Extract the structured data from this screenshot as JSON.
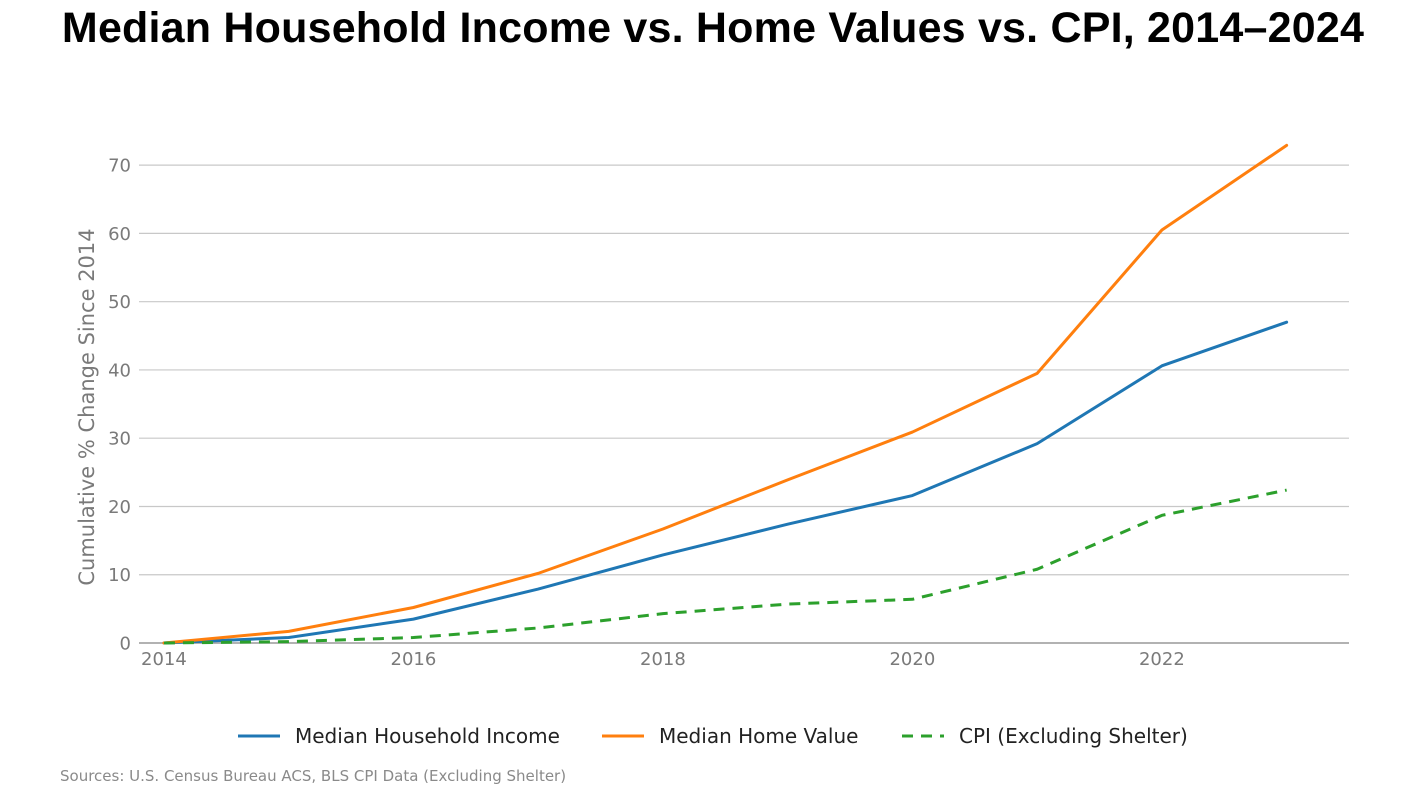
{
  "chart_data": {
    "type": "line",
    "title": "Median Household Income vs. Home Values vs. CPI, 2014–2024",
    "xlabel": "",
    "ylabel": "Cumulative % Change Since 2014",
    "xlim": [
      2013.8,
      2023.5
    ],
    "ylim": [
      0,
      75
    ],
    "x_ticks": [
      2014,
      2016,
      2018,
      2020,
      2022
    ],
    "y_ticks": [
      0,
      10,
      20,
      30,
      40,
      50,
      60,
      70
    ],
    "grid": "horizontal",
    "legend_position": "bottom",
    "x": [
      2014,
      2015,
      2016,
      2017,
      2018,
      2019,
      2020,
      2021,
      2022,
      2023
    ],
    "series": [
      {
        "name": "Median Household Income",
        "color": "#1f77b4",
        "dash": "solid",
        "values": [
          0,
          0.8,
          3.5,
          7.9,
          12.9,
          17.4,
          21.6,
          29.2,
          40.6,
          47.0
        ]
      },
      {
        "name": "Median Home Value",
        "color": "#ff7f0e",
        "dash": "solid",
        "values": [
          0,
          1.7,
          5.2,
          10.2,
          16.7,
          23.9,
          30.9,
          39.5,
          60.5,
          72.9
        ]
      },
      {
        "name": "CPI (Excluding Shelter)",
        "color": "#2ca02c",
        "dash": "dashed",
        "values": [
          0,
          0.2,
          0.8,
          2.2,
          4.3,
          5.7,
          6.4,
          10.8,
          18.7,
          22.4
        ]
      }
    ],
    "source": "Sources: U.S. Census Bureau ACS, BLS CPI Data (Excluding Shelter)"
  },
  "colors": {
    "grid": "#c8c8c8",
    "axis": "#999999",
    "tick_text": "#7a7a7a"
  }
}
